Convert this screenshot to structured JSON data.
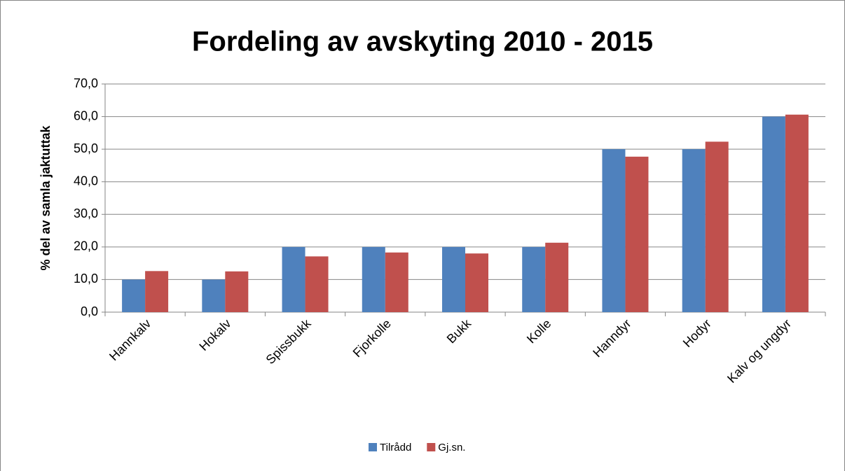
{
  "chart_data": {
    "type": "bar",
    "title": "Fordeling av avskyting 2010 - 2015",
    "y_label": "% del av samla jaktuttak",
    "categories": [
      "Hannkalv",
      "Hokalv",
      "Spissbukk",
      "Fjorkolle",
      "Bukk",
      "Kolle",
      "Hanndyr",
      "Hodyr",
      "Kalv og ungdyr"
    ],
    "series": [
      {
        "name": "Tilrådd",
        "color": "#4f81bd",
        "values": [
          10,
          10,
          20,
          20,
          20,
          20,
          50,
          50,
          60
        ]
      },
      {
        "name": "Gj.sn.",
        "color": "#c0504d",
        "values": [
          12.6,
          12.5,
          17.1,
          18.3,
          18.0,
          21.3,
          47.7,
          52.3,
          60.6
        ]
      }
    ],
    "ylim": [
      0,
      70
    ],
    "yticks": [
      {
        "value": 0,
        "label": "0,0"
      },
      {
        "value": 10,
        "label": "10,0"
      },
      {
        "value": 20,
        "label": "20,0"
      },
      {
        "value": 30,
        "label": "30,0"
      },
      {
        "value": 40,
        "label": "40,0"
      },
      {
        "value": 50,
        "label": "50,0"
      },
      {
        "value": 60,
        "label": "60,0"
      },
      {
        "value": 70,
        "label": "70,0"
      }
    ],
    "grid": true,
    "legend": "bottom"
  }
}
